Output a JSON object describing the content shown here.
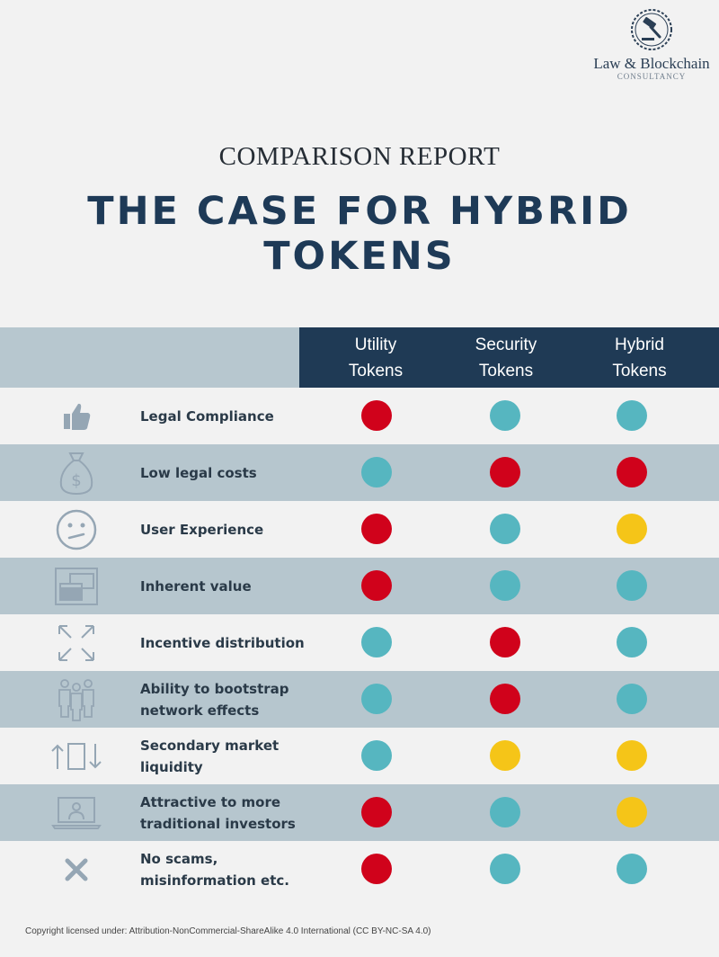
{
  "logo": {
    "name": "Law & Blockchain",
    "sub": "CONSULTANCY",
    "icon": "gavel-icon"
  },
  "header": {
    "subtitle": "COMPARISON REPORT",
    "title": "THE CASE FOR HYBRID TOKENS"
  },
  "columns": [
    "Utility\nTokens",
    "Security\nTokens",
    "Hybrid\nTokens"
  ],
  "colors": {
    "red": "#d0021b",
    "teal": "#56b6c0",
    "yellow": "#f5c518",
    "header_dark": "#1f3a55",
    "row_dark": "#b6c6ce"
  },
  "rows": [
    {
      "icon": "thumbs-up-icon",
      "label": "Legal Compliance",
      "ratings": [
        "red",
        "teal",
        "teal"
      ]
    },
    {
      "icon": "money-bag-icon",
      "label": "Low legal costs",
      "ratings": [
        "teal",
        "red",
        "red"
      ]
    },
    {
      "icon": "confused-face-icon",
      "label": "User Experience",
      "ratings": [
        "red",
        "teal",
        "yellow"
      ]
    },
    {
      "icon": "window-icon",
      "label": "Inherent value",
      "ratings": [
        "red",
        "teal",
        "teal"
      ]
    },
    {
      "icon": "expand-arrows-icon",
      "label": "Incentive distribution",
      "ratings": [
        "teal",
        "red",
        "teal"
      ]
    },
    {
      "icon": "people-group-icon",
      "label": "Ability to bootstrap\nnetwork effects",
      "ratings": [
        "teal",
        "red",
        "teal"
      ]
    },
    {
      "icon": "exchange-arrows-icon",
      "label": "Secondary market\nliquidity",
      "ratings": [
        "teal",
        "yellow",
        "yellow"
      ]
    },
    {
      "icon": "laptop-user-icon",
      "label": "Attractive to more\ntraditional investors",
      "ratings": [
        "red",
        "teal",
        "yellow"
      ]
    },
    {
      "icon": "cross-icon",
      "label": "No scams,\nmisinformation etc.",
      "ratings": [
        "red",
        "teal",
        "teal"
      ]
    }
  ],
  "footer": {
    "copyright": "Copyright licensed under: Attribution-NonCommercial-ShareAlike 4.0 International (CC BY-NC-SA 4.0)"
  }
}
